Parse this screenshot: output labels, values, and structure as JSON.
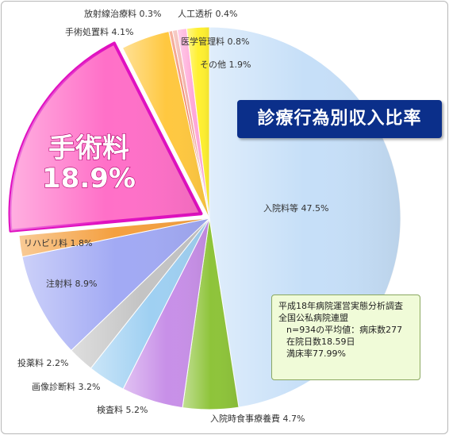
{
  "chart_data": {
    "type": "pie",
    "title": "診療行為別収入比率",
    "unit": "%",
    "slices": [
      {
        "label": "入院料等",
        "value": 47.5,
        "color": "#c6dff8",
        "display": "入院料等 47.5%"
      },
      {
        "label": "入院時食事療養費",
        "value": 4.7,
        "color": "#8ec43a",
        "display": "入院時食事療養費 4.7%"
      },
      {
        "label": "検査料",
        "value": 5.2,
        "color": "#c890e8",
        "display": "検査料 5.2%"
      },
      {
        "label": "画像診断料",
        "value": 3.2,
        "color": "#9fd0f2",
        "display": "画像診断料 3.2%"
      },
      {
        "label": "投薬料",
        "value": 2.2,
        "color": "#c4c4c4",
        "display": "投薬料 2.2%"
      },
      {
        "label": "注射料",
        "value": 8.9,
        "color": "#a2aaf4",
        "display": "注射料 8.9%"
      },
      {
        "label": "リハビリ料",
        "value": 1.8,
        "color": "#f4a040",
        "display": "リハビリ料 1.8%"
      },
      {
        "label": "手術料",
        "value": 18.9,
        "color": "#ff70c8",
        "display": "手術料 18.9%",
        "exploded": true,
        "big_name": "手術料",
        "big_value": "18.9%"
      },
      {
        "label": "手術処置料",
        "value": 4.1,
        "color": "#ffc840",
        "display": "手術処置料 4.1%"
      },
      {
        "label": "放射線治療料",
        "value": 0.3,
        "color": "#f08060",
        "display": "放射線治療料 0.3%"
      },
      {
        "label": "人工透析",
        "value": 0.4,
        "color": "#f0a8a0",
        "display": "人工透析 0.4%"
      },
      {
        "label": "医学管理料",
        "value": 0.8,
        "color": "#ffa8d8",
        "display": "医学管理料 0.8%"
      },
      {
        "label": "その他",
        "value": 1.9,
        "color": "#fff030",
        "display": "その他 1.9%"
      }
    ]
  },
  "note": {
    "lines": [
      "平成18年病院運営実態分析調査",
      "全国公私病院連盟",
      "n=934の平均値：病床数277",
      "在院日数18.59日",
      "満床率77.99%"
    ]
  },
  "colors": {
    "title_background": "#0b2f8a",
    "note_background": "#f0fbd8",
    "highlight_border": "#e010c0"
  }
}
